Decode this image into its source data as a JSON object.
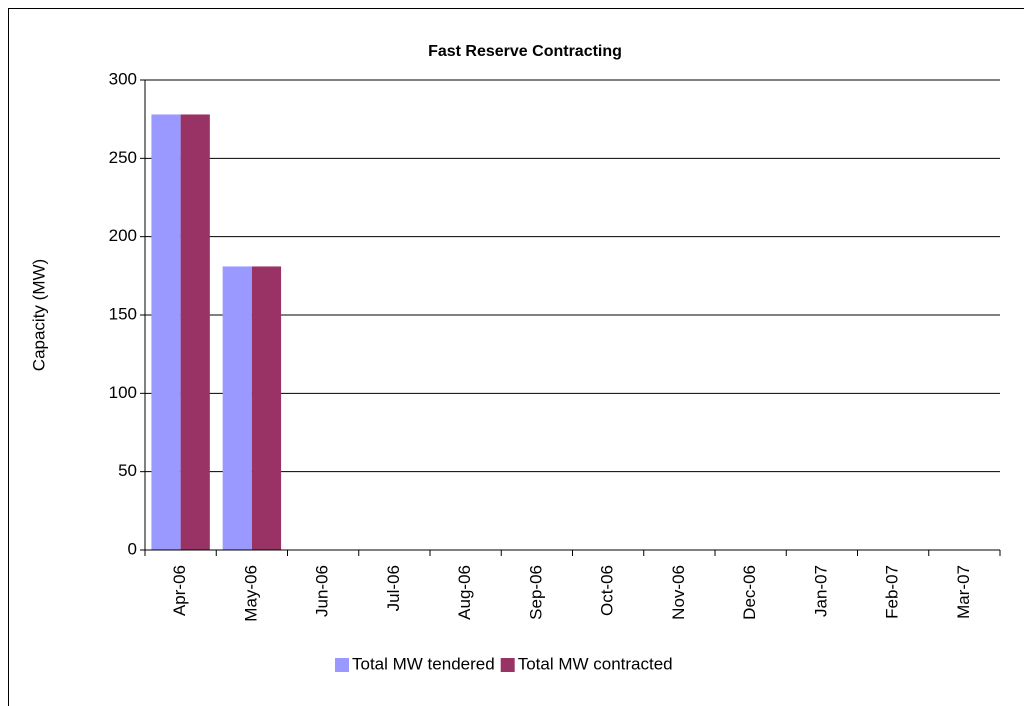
{
  "chart_data": {
    "type": "bar",
    "title": "Fast Reserve Contracting",
    "y_label": "Capacity (MW)",
    "categories": [
      "Apr-06",
      "May-06",
      "Jun-06",
      "Jul-06",
      "Aug-06",
      "Sep-06",
      "Oct-06",
      "Nov-06",
      "Dec-06",
      "Jan-07",
      "Feb-07",
      "Mar-07"
    ],
    "series": [
      {
        "name": "Total MW tendered",
        "color": "#9999ff",
        "values": [
          278,
          181,
          null,
          null,
          null,
          null,
          null,
          null,
          null,
          null,
          null,
          null
        ]
      },
      {
        "name": "Total MW contracted",
        "color": "#993366",
        "values": [
          278,
          181,
          null,
          null,
          null,
          null,
          null,
          null,
          null,
          null,
          null,
          null
        ]
      }
    ],
    "ylim": [
      0,
      300
    ],
    "yticks": [
      0,
      50,
      100,
      150,
      200,
      250,
      300
    ],
    "grid": true,
    "legend": "bottom"
  }
}
